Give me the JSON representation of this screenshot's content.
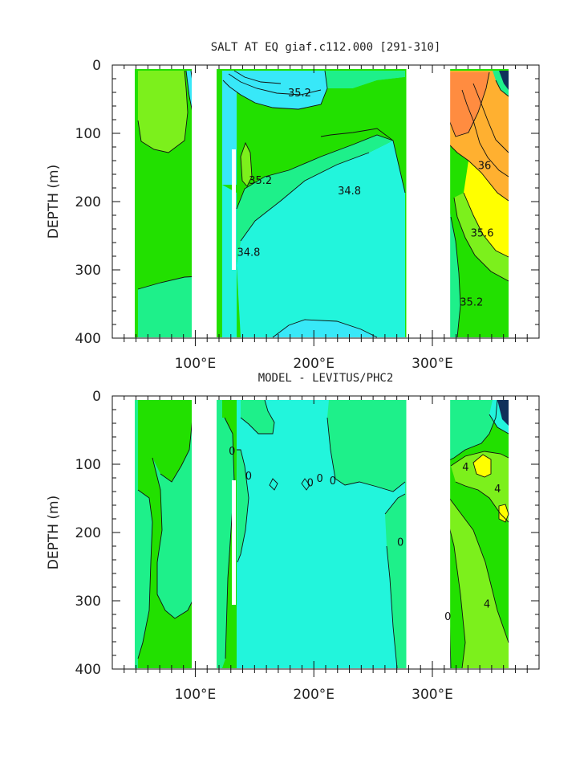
{
  "colors": {
    "green": "#22e000",
    "lightgreen": "#7cf01c",
    "seagreen": "#1ef08a",
    "cyan": "#22f5dc",
    "lightcyan": "#38e8f8",
    "yellow": "#ffff00",
    "orange": "#ffb030",
    "darkorange": "#ff8c40",
    "deepblue": "#10305a",
    "land": "#ffffff"
  },
  "chart_data": [
    {
      "type": "heatmap",
      "title": "SALT AT EQ giaf.c112.000 [291-310]",
      "ylabel": "DEPTH (m)",
      "xlabel": "",
      "xlim": [
        30,
        390
      ],
      "ylim": [
        400,
        0
      ],
      "y_inverted": true,
      "x_ticks": [
        {
          "v": 100,
          "label": "100°E"
        },
        {
          "v": 200,
          "label": "200°E"
        },
        {
          "v": 300,
          "label": "300°E"
        }
      ],
      "y_ticks": [
        {
          "v": 0,
          "label": "0"
        },
        {
          "v": 100,
          "label": "100"
        },
        {
          "v": 200,
          "label": "200"
        },
        {
          "v": 300,
          "label": "300"
        },
        {
          "v": 400,
          "label": "400"
        }
      ],
      "grid": false,
      "legend": "none",
      "land_masks_lon": [
        [
          30,
          43
        ],
        [
          97,
          118
        ],
        [
          278,
          315
        ],
        [
          372,
          390
        ]
      ],
      "contour_labels": [
        {
          "text": "35.2",
          "lon": 188,
          "depth": 42
        },
        {
          "text": "35.2",
          "lon": 155,
          "depth": 170
        },
        {
          "text": "34.8",
          "lon": 230,
          "depth": 185
        },
        {
          "text": "34.8",
          "lon": 145,
          "depth": 275
        },
        {
          "text": "36",
          "lon": 344,
          "depth": 148
        },
        {
          "text": "35.6",
          "lon": 342,
          "depth": 247
        },
        {
          "text": "35.2",
          "lon": 333,
          "depth": 348
        }
      ]
    },
    {
      "type": "heatmap",
      "title": "MODEL - LEVITUS/PHC2",
      "ylabel": "DEPTH (m)",
      "xlabel": "",
      "xlim": [
        30,
        390
      ],
      "ylim": [
        400,
        0
      ],
      "y_inverted": true,
      "x_ticks": [
        {
          "v": 100,
          "label": "100°E"
        },
        {
          "v": 200,
          "label": "200°E"
        },
        {
          "v": 300,
          "label": "300°E"
        }
      ],
      "y_ticks": [
        {
          "v": 0,
          "label": "0"
        },
        {
          "v": 100,
          "label": "100"
        },
        {
          "v": 200,
          "label": "200"
        },
        {
          "v": 300,
          "label": "300"
        },
        {
          "v": 400,
          "label": "400"
        }
      ],
      "grid": false,
      "legend": "none",
      "land_masks_lon": [
        [
          30,
          43
        ],
        [
          97,
          118
        ],
        [
          278,
          315
        ],
        [
          372,
          390
        ]
      ],
      "contour_labels": [
        {
          "text": "0",
          "lon": 131,
          "depth": 82
        },
        {
          "text": "0",
          "lon": 145,
          "depth": 118
        },
        {
          "text": "0",
          "lon": 197,
          "depth": 128
        },
        {
          "text": "0",
          "lon": 205,
          "depth": 122
        },
        {
          "text": "0",
          "lon": 216,
          "depth": 125
        },
        {
          "text": "0",
          "lon": 273,
          "depth": 215
        },
        {
          "text": "4",
          "lon": 328,
          "depth": 105
        },
        {
          "text": "4",
          "lon": 355,
          "depth": 137
        },
        {
          "text": "4",
          "lon": 346,
          "depth": 306
        },
        {
          "text": "0",
          "lon": 313,
          "depth": 324
        }
      ]
    }
  ]
}
